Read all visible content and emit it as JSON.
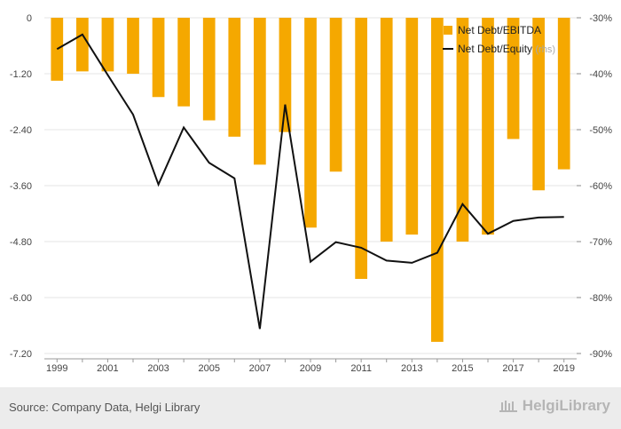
{
  "chart_data": {
    "type": "bar+line",
    "title": "",
    "x": [
      "1999",
      "2000",
      "2001",
      "2002",
      "2003",
      "2004",
      "2005",
      "2006",
      "2007",
      "2008",
      "2009",
      "2010",
      "2011",
      "2012",
      "2013",
      "2014",
      "2015",
      "2016",
      "2017",
      "2018",
      "2019"
    ],
    "x_tick_labels": [
      "1999",
      "2001",
      "2003",
      "2005",
      "2007",
      "2009",
      "2011",
      "2013",
      "2015",
      "2017",
      "2019"
    ],
    "left_axis": {
      "ylim": [
        -7.2,
        0
      ],
      "ticks": [
        "0",
        "-1.20",
        "-2.40",
        "-3.60",
        "-4.80",
        "-6.00",
        "-7.20"
      ],
      "tick_values": [
        0,
        -1.2,
        -2.4,
        -3.6,
        -4.8,
        -6.0,
        -7.2
      ]
    },
    "right_axis": {
      "ylim": [
        -90,
        -30
      ],
      "ticks": [
        "-30%",
        "-40%",
        "-50%",
        "-60%",
        "-70%",
        "-80%",
        "-90%"
      ],
      "tick_values": [
        -30,
        -40,
        -50,
        -60,
        -70,
        -80,
        -90
      ]
    },
    "grid": true,
    "legend_position": "top-right",
    "series": [
      {
        "name": "Net Debt/EBITDA",
        "type": "bar",
        "axis": "left",
        "color": "#f5a800",
        "values": [
          -1.35,
          -1.15,
          -1.15,
          -1.2,
          -1.7,
          -1.9,
          -2.2,
          -2.55,
          -3.15,
          -2.45,
          -4.5,
          -3.3,
          -5.6,
          -4.8,
          -4.65,
          -6.95,
          -4.8,
          -4.65,
          -2.6,
          -3.7,
          -3.25
        ]
      },
      {
        "name": "Net Debt/Equity",
        "name_suffix": "(rhs)",
        "type": "line",
        "axis": "right",
        "color": "#111111",
        "values": [
          -35.6,
          -33.0,
          -40.2,
          -47.3,
          -59.8,
          -49.6,
          -55.9,
          -58.7,
          -85.6,
          -45.5,
          -73.6,
          -70.1,
          -71.1,
          -73.4,
          -73.8,
          -72.0,
          -63.3,
          -68.6,
          -66.3,
          -65.7,
          -65.6
        ]
      }
    ]
  },
  "footer": {
    "source": "Source: Company Data, Helgi Library",
    "brand": "HelgiLibrary",
    "brand_icon": "library-building-icon"
  }
}
